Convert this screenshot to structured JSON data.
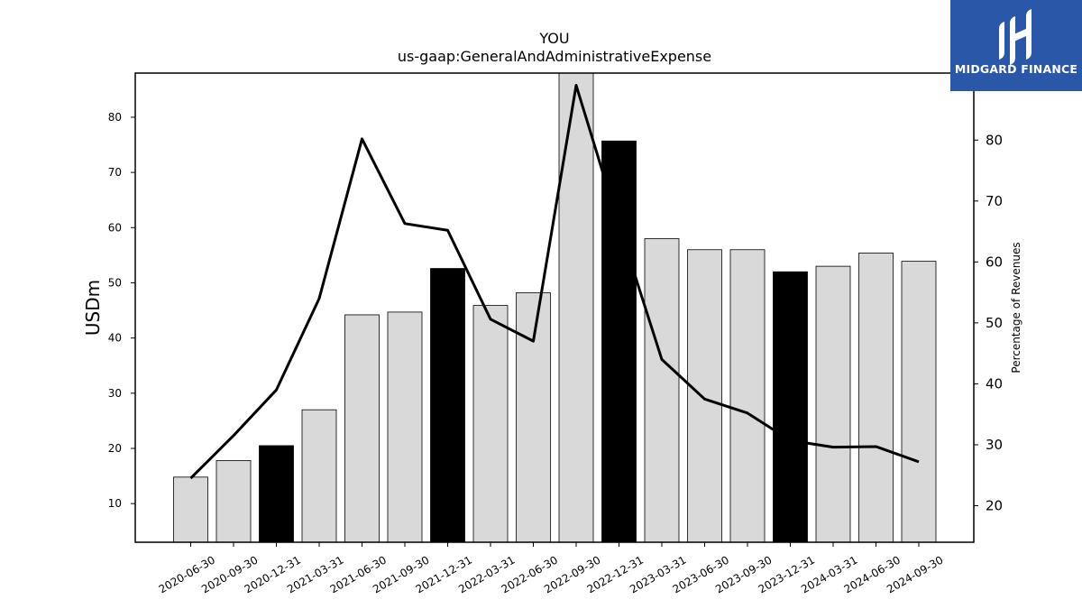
{
  "chart_data": {
    "type": "bar",
    "title": "YOU",
    "subtitle": "us-gaap:GeneralAndAdministrativeExpense",
    "ylabel": "USDm",
    "y2label": "Percentage of Revenues",
    "categories": [
      "2020-06-30",
      "2020-09-30",
      "2020-12-31",
      "2021-03-31",
      "2021-06-30",
      "2021-09-30",
      "2021-12-31",
      "2022-03-31",
      "2022-06-30",
      "2022-09-30",
      "2022-12-31",
      "2023-03-31",
      "2023-06-30",
      "2023-09-30",
      "2023-12-31",
      "2024-03-31",
      "2024-06-30",
      "2024-09-30"
    ],
    "series": [
      {
        "type": "bar",
        "values": [
          14.8,
          17.8,
          20.5,
          27.0,
          44.2,
          44.7,
          52.6,
          45.9,
          48.2,
          88.0,
          75.7,
          58.0,
          56.0,
          56.0,
          52.0,
          53.0,
          55.4,
          53.9
        ],
        "highlight": [
          false,
          false,
          true,
          false,
          false,
          false,
          true,
          false,
          false,
          false,
          true,
          false,
          false,
          false,
          true,
          false,
          false,
          false
        ]
      },
      {
        "type": "line",
        "axis": "right",
        "values": [
          24.5,
          31.5,
          39.0,
          54.0,
          80.2,
          66.3,
          65.2,
          50.6,
          47.0,
          89.0,
          66.0,
          44.0,
          37.5,
          35.2,
          30.7,
          29.6,
          29.7,
          27.2
        ]
      }
    ],
    "ylim": [
      3,
      88
    ],
    "y2lim": [
      14,
      91
    ],
    "yticks": [
      10,
      20,
      30,
      40,
      50,
      60,
      70,
      80
    ],
    "y2ticks": [
      20,
      30,
      40,
      50,
      60,
      70,
      80
    ],
    "grid": false,
    "colors": {
      "bar": "#d9d9d9",
      "bar_highlight": "#000000",
      "line": "#000000",
      "edge": "#000000"
    }
  },
  "logo": {
    "text": "MIDGARD FINANCE",
    "background": "#2b57a8"
  }
}
